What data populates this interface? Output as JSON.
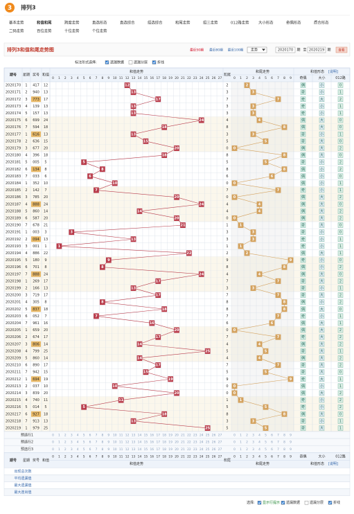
{
  "header": {
    "logo": "3",
    "title": "排列3"
  },
  "nav": [
    [
      "基本走势",
      "和值和尾",
      "跨度走势",
      "直选形态",
      "直选综合",
      "组选综合",
      "和尾走势",
      "组三走势",
      "012路走势",
      "大小形态",
      "奇偶形态",
      "质合形态"
    ],
    [
      "二码走势",
      "百位走势",
      "十位走势",
      "个位走势"
    ]
  ],
  "toolbar": {
    "title": "排列3和值和尾走势图",
    "periods": [
      "最近50期",
      "最近80期",
      "最近100期"
    ],
    "select": "走势",
    "from": "2020170",
    "from_suffix": "期",
    "to_prefix": "至",
    "to": "2020219",
    "to_suffix": "期",
    "button": "查看"
  },
  "options": {
    "label": "标注形式选择:",
    "items": [
      "遗漏数据",
      "遗漏分层",
      "折线"
    ],
    "checked": [
      true,
      false,
      true
    ]
  },
  "table": {
    "headers": {
      "issue": "期号",
      "week": "星期",
      "number": "奖号",
      "sum": "和值",
      "sum_trend": "和值走势",
      "tail": "和尾",
      "tail_trend": "和尾走势",
      "form": "和值形态",
      "form_note": "[说明]",
      "form_cols": [
        "奇偶",
        "大小",
        "012路"
      ]
    },
    "sum_columns": [
      0,
      1,
      2,
      3,
      4,
      5,
      6,
      7,
      8,
      9,
      10,
      11,
      12,
      13,
      14,
      15,
      16,
      17,
      18,
      19,
      20,
      21,
      22,
      23,
      24,
      25,
      26,
      27
    ],
    "tail_columns": [
      0,
      1,
      2,
      3,
      4,
      5,
      6,
      7,
      8,
      9
    ],
    "rows": [
      [
        "2020170",
        1,
        "417",
        12,
        2,
        "偶",
        "小",
        0
      ],
      [
        "2020171",
        2,
        "940",
        13,
        3,
        "奇",
        "小",
        1
      ],
      [
        "2020172",
        3,
        "773",
        17,
        7,
        "奇",
        "大",
        2
      ],
      [
        "2020173",
        4,
        "139",
        13,
        3,
        "奇",
        "小",
        1
      ],
      [
        "2020174",
        5,
        "157",
        13,
        3,
        "奇",
        "小",
        1
      ],
      [
        "2020175",
        6,
        "699",
        24,
        4,
        "偶",
        "大",
        0
      ],
      [
        "2020176",
        7,
        "594",
        18,
        8,
        "偶",
        "大",
        0
      ],
      [
        "2020177",
        1,
        "616",
        13,
        3,
        "奇",
        "小",
        1
      ],
      [
        "2020178",
        2,
        "636",
        15,
        5,
        "奇",
        "大",
        0
      ],
      [
        "2020179",
        3,
        "677",
        20,
        0,
        "偶",
        "大",
        2
      ],
      [
        "2020180",
        4,
        "396",
        18,
        8,
        "偶",
        "大",
        0
      ],
      [
        "2020181",
        5,
        "005",
        5,
        5,
        "奇",
        "小",
        2
      ],
      [
        "2020182",
        6,
        "134",
        8,
        8,
        "偶",
        "小",
        2
      ],
      [
        "2020183",
        7,
        "033",
        6,
        6,
        "偶",
        "小",
        0
      ],
      [
        "2020184",
        1,
        "352",
        10,
        0,
        "偶",
        "小",
        1
      ],
      [
        "2020185",
        2,
        "142",
        7,
        7,
        "奇",
        "小",
        1
      ],
      [
        "2020186",
        3,
        "785",
        20,
        0,
        "偶",
        "大",
        2
      ],
      [
        "2020187",
        4,
        "888",
        24,
        4,
        "偶",
        "大",
        0
      ],
      [
        "2020188",
        5,
        "860",
        14,
        4,
        "偶",
        "大",
        2
      ],
      [
        "2020189",
        6,
        "587",
        20,
        0,
        "偶",
        "大",
        2
      ],
      [
        "2020190",
        7,
        "678",
        21,
        1,
        "奇",
        "大",
        0
      ],
      [
        "2020191",
        1,
        "003",
        3,
        3,
        "奇",
        "小",
        0
      ],
      [
        "2020192",
        2,
        "094",
        13,
        3,
        "奇",
        "小",
        1
      ],
      [
        "2020193",
        3,
        "001",
        1,
        1,
        "奇",
        "小",
        1
      ],
      [
        "2020194",
        4,
        "886",
        22,
        2,
        "偶",
        "大",
        1
      ],
      [
        "2020195",
        5,
        "180",
        9,
        9,
        "奇",
        "小",
        0
      ],
      [
        "2020196",
        6,
        "701",
        8,
        8,
        "偶",
        "小",
        2
      ],
      [
        "2020197",
        7,
        "888",
        24,
        4,
        "偶",
        "大",
        0
      ],
      [
        "2020198",
        1,
        "269",
        17,
        7,
        "奇",
        "大",
        2
      ],
      [
        "2020199",
        2,
        "166",
        13,
        3,
        "奇",
        "小",
        1
      ],
      [
        "2020200",
        3,
        "719",
        17,
        7,
        "奇",
        "大",
        2
      ],
      [
        "2020201",
        4,
        "305",
        8,
        8,
        "偶",
        "小",
        2
      ],
      [
        "2020202",
        5,
        "837",
        18,
        8,
        "偶",
        "大",
        0
      ],
      [
        "2020203",
        6,
        "052",
        7,
        7,
        "奇",
        "小",
        1
      ],
      [
        "2020204",
        7,
        "961",
        16,
        6,
        "偶",
        "大",
        1
      ],
      [
        "2020205",
        1,
        "659",
        20,
        0,
        "偶",
        "大",
        2
      ],
      [
        "2020206",
        2,
        "674",
        17,
        7,
        "奇",
        "大",
        2
      ],
      [
        "2020207",
        3,
        "806",
        14,
        4,
        "偶",
        "大",
        2
      ],
      [
        "2020208",
        4,
        "799",
        25,
        5,
        "奇",
        "大",
        1
      ],
      [
        "2020209",
        5,
        "860",
        14,
        4,
        "偶",
        "大",
        2
      ],
      [
        "2020210",
        6,
        "890",
        17,
        7,
        "奇",
        "大",
        2
      ],
      [
        "2020211",
        7,
        "942",
        15,
        5,
        "奇",
        "大",
        0
      ],
      [
        "2020212",
        1,
        "694",
        19,
        9,
        "奇",
        "大",
        1
      ],
      [
        "2020213",
        2,
        "037",
        10,
        0,
        "偶",
        "小",
        1
      ],
      [
        "2020214",
        3,
        "839",
        20,
        0,
        "偶",
        "大",
        2
      ],
      [
        "2020215",
        4,
        "740",
        11,
        1,
        "奇",
        "小",
        2
      ],
      [
        "2020216",
        5,
        "014",
        5,
        5,
        "奇",
        "小",
        2
      ],
      [
        "2020217",
        6,
        "927",
        18,
        8,
        "偶",
        "大",
        0
      ],
      [
        "2020218",
        7,
        "913",
        13,
        3,
        "奇",
        "小",
        1
      ],
      [
        "2020219",
        1,
        "979",
        25,
        5,
        "奇",
        "大",
        1
      ]
    ],
    "preselect": [
      "预选行1",
      "预选行2",
      "预选行3"
    ],
    "stats": [
      "出现总次数",
      "平均遗漏值",
      "最大遗漏值",
      "最大连出值"
    ]
  },
  "footer": {
    "label": "选择:",
    "items": [
      "显示行提示",
      "遗漏数据",
      "遗漏分层",
      "折线"
    ],
    "checked": [
      true,
      true,
      false,
      true
    ]
  }
}
